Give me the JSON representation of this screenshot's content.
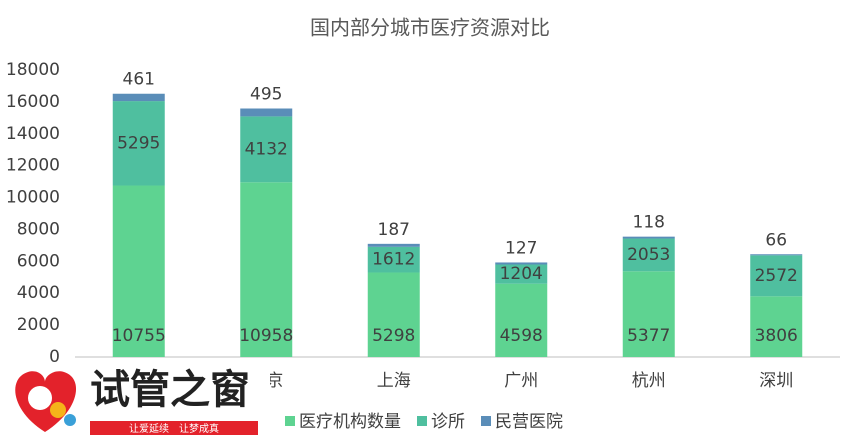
{
  "chart_data": {
    "type": "stacked_bar",
    "title": "国内部分城市医疗资源对比",
    "categories": [
      null,
      "北京",
      "上海",
      "广州",
      "杭州",
      "深圳"
    ],
    "series": [
      {
        "name": "医疗机构数量",
        "color": "#5ed391",
        "values": [
          10755,
          10958,
          5298,
          4598,
          5377,
          3806
        ]
      },
      {
        "name": "诊所",
        "color": "#4fbf9f",
        "values": [
          5295,
          4132,
          1612,
          1204,
          2053,
          2572
        ]
      },
      {
        "name": "民营医院",
        "color": "#5a8db8",
        "values": [
          461,
          495,
          187,
          127,
          118,
          66
        ]
      }
    ],
    "ylim": [
      0,
      18000
    ],
    "yticks": [
      0,
      2000,
      4000,
      6000,
      8000,
      10000,
      12000,
      14000,
      16000,
      18000
    ],
    "grid": false,
    "legend": "bottom"
  },
  "watermark": {
    "title": "试管之窗",
    "slogan": "让爱延续　让梦成真"
  }
}
